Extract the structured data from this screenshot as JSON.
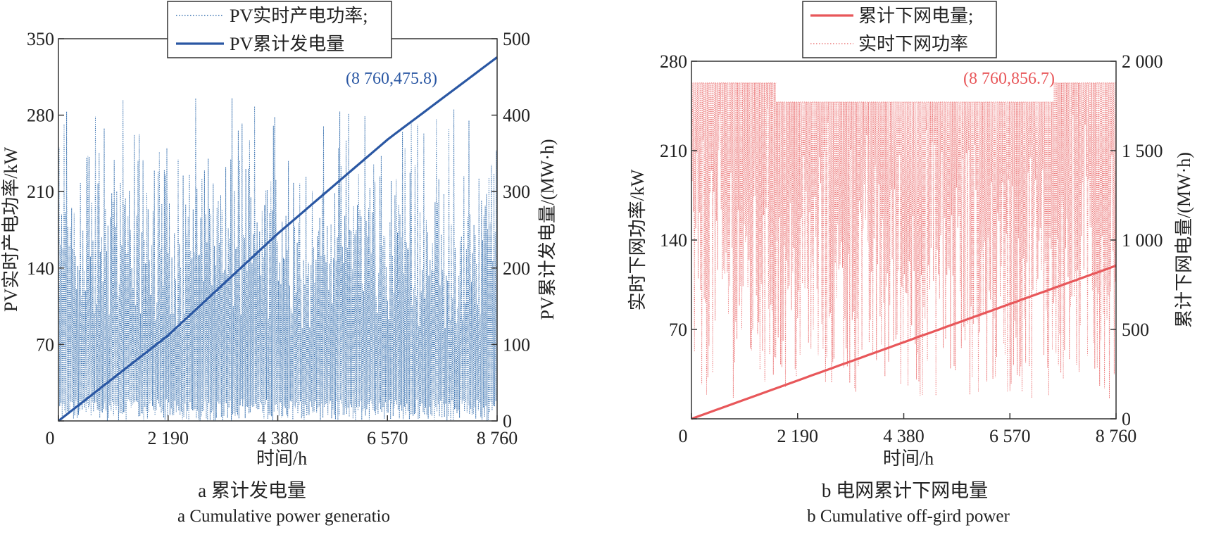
{
  "chart_data": [
    {
      "type": "line",
      "x_axis": {
        "label": "时间/h",
        "ticks": [
          0,
          2190,
          4380,
          6570,
          8760
        ],
        "tick_labels": [
          "0",
          "2 190",
          "4 380",
          "6 570",
          "8 760"
        ],
        "range": [
          0,
          8760
        ]
      },
      "y_left": {
        "label": "PV实时产电功率/kW",
        "ticks": [
          0,
          70,
          140,
          210,
          280,
          350
        ],
        "tick_labels": [
          "0",
          "70",
          "140",
          "210",
          "280",
          "350"
        ],
        "range": [
          0,
          350
        ]
      },
      "y_right": {
        "label": "PV累计发电量/(MW·h)",
        "ticks": [
          0,
          100,
          200,
          300,
          400,
          500
        ],
        "tick_labels": [
          "0",
          "100",
          "200",
          "300",
          "400",
          "500"
        ],
        "range": [
          0,
          500
        ]
      },
      "series": [
        {
          "name": "PV实时产电功率;",
          "axis": "left",
          "style": "dotted",
          "color": "#3a72b0",
          "description_values": {
            "x_range": [
              0,
              8760
            ],
            "min": 0,
            "max": 315
          }
        },
        {
          "name": "PV累计发电量",
          "axis": "right",
          "style": "solid",
          "color": "#2a57a3",
          "x": [
            0,
            2190,
            4380,
            6570,
            8760
          ],
          "y": [
            0,
            112,
            245,
            368,
            475.8
          ]
        }
      ],
      "annotation": {
        "text": "(8 760,475.8)",
        "x": 8760,
        "y": 475.8
      },
      "legend": "top-center",
      "caption_cn": "a  累计发电量",
      "caption_en": "a  Cumulative power generatio"
    },
    {
      "type": "line",
      "x_axis": {
        "label": "时间/h",
        "ticks": [
          0,
          2190,
          4380,
          6570,
          8760
        ],
        "tick_labels": [
          "0",
          "2 190",
          "4 380",
          "6 570",
          "8 760"
        ],
        "range": [
          0,
          8760
        ]
      },
      "y_left": {
        "label": "实时下网功率/kW",
        "ticks": [
          0,
          70,
          140,
          210,
          280
        ],
        "tick_labels": [
          "0",
          "70",
          "140",
          "210",
          "280"
        ],
        "range": [
          0,
          280
        ]
      },
      "y_right": {
        "label": "累计下网电量/(MW·h)",
        "ticks": [
          0,
          500,
          1000,
          1500,
          2000
        ],
        "tick_labels": [
          "0",
          "500",
          "1 000",
          "1 500",
          "2 000"
        ],
        "range": [
          0,
          2000
        ]
      },
      "series": [
        {
          "name": "累计下网电量;",
          "axis": "right",
          "style": "solid",
          "color": "#e8575a",
          "x": [
            0,
            8760
          ],
          "y": [
            0,
            856.7
          ]
        },
        {
          "name": "实时下网功率",
          "axis": "left",
          "style": "dotted",
          "color": "#ec7b7c",
          "description_values": {
            "x_range": [
              0,
              8760
            ],
            "min": 16,
            "max": 263
          }
        }
      ],
      "annotation": {
        "text": "(8 760,856.7)",
        "x": 8760,
        "y": 856.7
      },
      "legend": "top-center",
      "caption_cn": "b  电网累计下网电量",
      "caption_en": "b  Cumulative off-gird power"
    }
  ]
}
